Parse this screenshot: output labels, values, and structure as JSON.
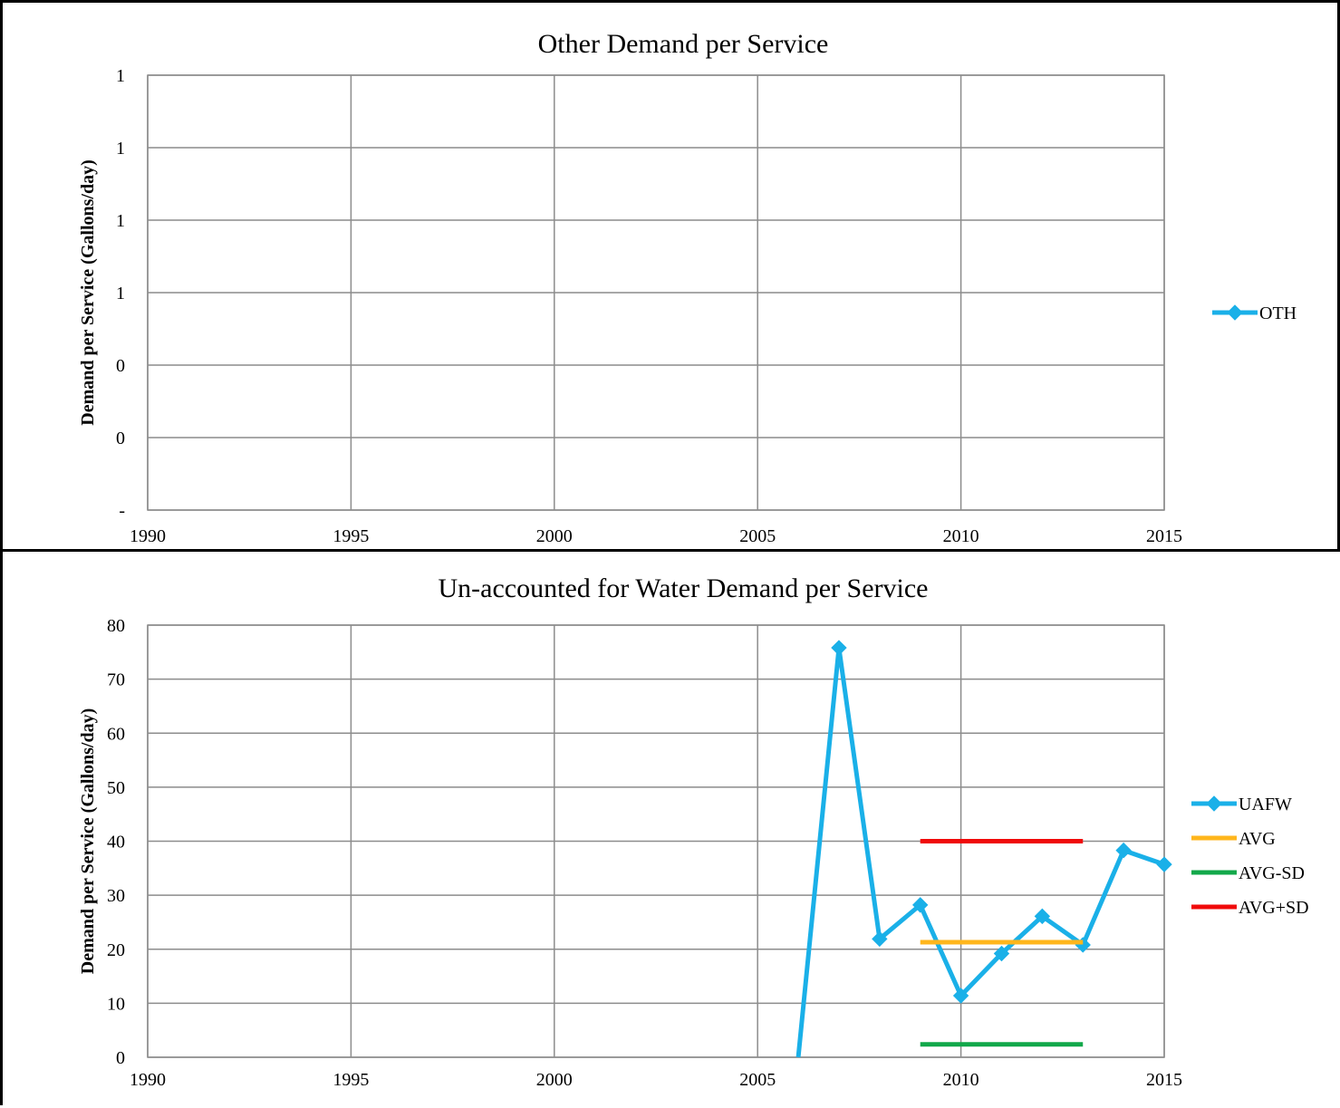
{
  "chart_data": [
    {
      "type": "line",
      "title": "Other Demand per Service",
      "ylabel": "Demand per Service (Gallons/day)",
      "xlabel": "",
      "xlim": [
        1990,
        2015
      ],
      "ylim": [
        0,
        1.2
      ],
      "x_ticks": [
        1990,
        1995,
        2000,
        2005,
        2010,
        2015
      ],
      "y_tick_values": [
        0,
        0.2,
        0.4,
        0.6,
        0.8,
        1.0,
        1.2
      ],
      "y_tick_labels": [
        "-",
        "0",
        "0",
        "1",
        "1",
        "1",
        "1"
      ],
      "grid": true,
      "legend_position": "right",
      "series": [
        {
          "name": "OTH",
          "color": "#1AB0E8",
          "marker": "diamond",
          "x": [],
          "y": []
        }
      ]
    },
    {
      "type": "line",
      "title": "Un-accounted for Water Demand per Service",
      "ylabel": "Demand per Service (Gallons/day)",
      "xlabel": "",
      "xlim": [
        1990,
        2015
      ],
      "ylim": [
        0,
        80
      ],
      "x_ticks": [
        1990,
        1995,
        2000,
        2005,
        2010,
        2015
      ],
      "y_tick_values": [
        0,
        10,
        20,
        30,
        40,
        50,
        60,
        70,
        80
      ],
      "y_tick_labels": [
        "0",
        "10",
        "20",
        "30",
        "40",
        "50",
        "60",
        "70",
        "80"
      ],
      "grid": true,
      "legend_position": "right",
      "series": [
        {
          "name": "UAFW",
          "color": "#1AB0E8",
          "marker": "diamond",
          "start_marker": false,
          "x": [
            2006,
            2007,
            2008,
            2009,
            2010,
            2011,
            2012,
            2013,
            2014,
            2015
          ],
          "y": [
            0,
            75.8,
            21.9,
            28.2,
            11.4,
            19.2,
            26.1,
            20.8,
            38.3,
            35.7
          ]
        },
        {
          "name": "AVG",
          "color": "#FFB61C",
          "marker": "none",
          "x": [
            2009,
            2013
          ],
          "y": [
            21.3,
            21.3
          ]
        },
        {
          "name": "AVG-SD",
          "color": "#12A84A",
          "marker": "none",
          "x": [
            2009,
            2013
          ],
          "y": [
            2.4,
            2.4
          ]
        },
        {
          "name": "AVG+SD",
          "color": "#F00A0A",
          "marker": "none",
          "x": [
            2009,
            2013
          ],
          "y": [
            40,
            40
          ]
        }
      ]
    }
  ]
}
